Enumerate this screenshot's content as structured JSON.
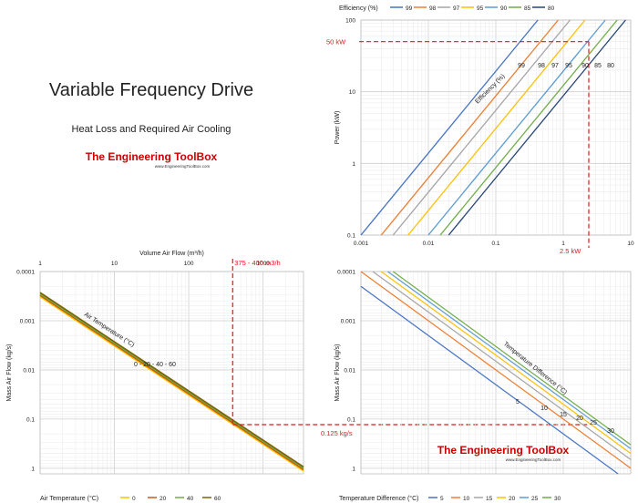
{
  "intro": {
    "title": "Variable Frequency Drive",
    "subtitle": "Heat Loss and Required Air Cooling",
    "logo_text": "The Engineering ToolBox",
    "logo_url": "www.EngineeringToolBox.com"
  },
  "colors": {
    "c99": "#4472c4",
    "c98": "#ed7d31",
    "c97": "#a5a5a5",
    "c95": "#ffc000",
    "c90": "#5b9bd5",
    "c85": "#70ad47",
    "c80": "#264478",
    "t0": "#ffc000",
    "t20": "#c55a11",
    "t40": "#70ad47",
    "t60": "#7f6000",
    "annotation": "#e0191b",
    "logo_red": "#cc0000"
  },
  "chart_data": [
    {
      "id": "efficiency",
      "type": "line",
      "legend_title": "Efficiency (%)",
      "ylabel": "Power (kW)",
      "xlabel": "",
      "xscale": "log",
      "yscale": "log",
      "xlim": [
        0.001,
        10
      ],
      "ylim": [
        0.1,
        100
      ],
      "x_ticks": [
        "0.001",
        "0.01",
        "0.1",
        "1",
        "10"
      ],
      "y_ticks": [
        "0.1",
        "1",
        "10",
        "100"
      ],
      "curve_title": "Efficiency (%)",
      "series": [
        {
          "name": "99",
          "color_key": "c99",
          "x": [
            0.001,
            0.42
          ],
          "y": [
            0.1,
            100
          ]
        },
        {
          "name": "98",
          "color_key": "c98",
          "x": [
            0.002,
            0.84
          ],
          "y": [
            0.1,
            100
          ]
        },
        {
          "name": "97",
          "color_key": "c97",
          "x": [
            0.003,
            1.26
          ],
          "y": [
            0.1,
            100
          ]
        },
        {
          "name": "95",
          "color_key": "c95",
          "x": [
            0.005,
            2.1
          ],
          "y": [
            0.1,
            100
          ]
        },
        {
          "name": "90",
          "color_key": "c90",
          "x": [
            0.01,
            4.2
          ],
          "y": [
            0.1,
            100
          ]
        },
        {
          "name": "85",
          "color_key": "c85",
          "x": [
            0.015,
            6.3
          ],
          "y": [
            0.1,
            100
          ]
        },
        {
          "name": "80",
          "color_key": "c80",
          "x": [
            0.02,
            8.4
          ],
          "y": [
            0.1,
            100
          ]
        }
      ],
      "curve_labels": [
        "99",
        "98",
        "97",
        "95",
        "90",
        "85",
        "80"
      ],
      "annotations": {
        "power_label": "50 kW",
        "heat_label": "2.5 kW",
        "power": 50,
        "heat": 2.5
      }
    },
    {
      "id": "air-temperature",
      "type": "line",
      "xlabel": "Volume Air Flow (m³/h)",
      "ylabel": "Mass Air Flow (kg/s)",
      "legend_title": "Air Temperature (°C)",
      "xscale": "log",
      "yscale": "log",
      "y_inverted": true,
      "xlim": [
        1,
        3500
      ],
      "ylim": [
        0.0001,
        1.3
      ],
      "x_ticks": [
        "1",
        "10",
        "100",
        "1000"
      ],
      "y_ticks": [
        "0.0001",
        "0.001",
        "0.01",
        "0.1",
        "1"
      ],
      "curve_title": "Air Temperature (°C)",
      "curve_label": "0 - 20 - 40 - 60",
      "series": [
        {
          "name": "0",
          "color_key": "t0",
          "x": [
            1,
            3500
          ],
          "y": [
            0.000325,
            1.137
          ]
        },
        {
          "name": "20",
          "color_key": "t20",
          "x": [
            1,
            3500
          ],
          "y": [
            0.000305,
            1.067
          ]
        },
        {
          "name": "40",
          "color_key": "t40",
          "x": [
            1,
            3500
          ],
          "y": [
            0.000285,
            0.998
          ]
        },
        {
          "name": "60",
          "color_key": "t60",
          "x": [
            1,
            3500
          ],
          "y": [
            0.000268,
            0.938
          ]
        }
      ],
      "annotations": {
        "flow_label": "375 - 400 m3/h",
        "flow": 390
      }
    },
    {
      "id": "temperature-difference",
      "type": "line",
      "xlabel": "",
      "ylabel": "Mass Air Flow (kg/s)",
      "legend_title": "Temperature Difference (°C)",
      "xscale": "log",
      "yscale": "log",
      "y_inverted": true,
      "xlim": [
        0.001,
        10
      ],
      "ylim": [
        0.0001,
        1.3
      ],
      "x_ticks": [],
      "y_ticks": [
        "0.0001",
        "0.001",
        "0.01",
        "0.1",
        "1"
      ],
      "curve_title": "Temperature Difference (°C)",
      "series": [
        {
          "name": "5",
          "color_key": "c99",
          "x": [
            0.001,
            0.35
          ],
          "y": [
            0.0002,
            0.07
          ]
        },
        {
          "name": "10",
          "color_key": "c98",
          "x": [
            0.001,
            2.5
          ],
          "y": [
            0.0001,
            0.25
          ]
        },
        {
          "name": "15",
          "color_key": "c97",
          "x": [
            0.0015,
            3.75
          ],
          "y": [
            0.0001,
            0.25
          ]
        },
        {
          "name": "20",
          "color_key": "c95",
          "x": [
            0.002,
            10
          ],
          "y": [
            0.0001,
            0.5
          ]
        },
        {
          "name": "25",
          "color_key": "c90",
          "x": [
            0.0025,
            10
          ],
          "y": [
            0.0001,
            0.4
          ]
        },
        {
          "name": "30",
          "color_key": "c85",
          "x": [
            0.003,
            10
          ],
          "y": [
            0.0001,
            0.333
          ]
        }
      ],
      "curve_labels": [
        "5",
        "10",
        "15",
        "20",
        "25",
        "30"
      ],
      "annotations": {
        "mass_label": "0.125 kg/s",
        "mass": 0.12
      }
    }
  ]
}
